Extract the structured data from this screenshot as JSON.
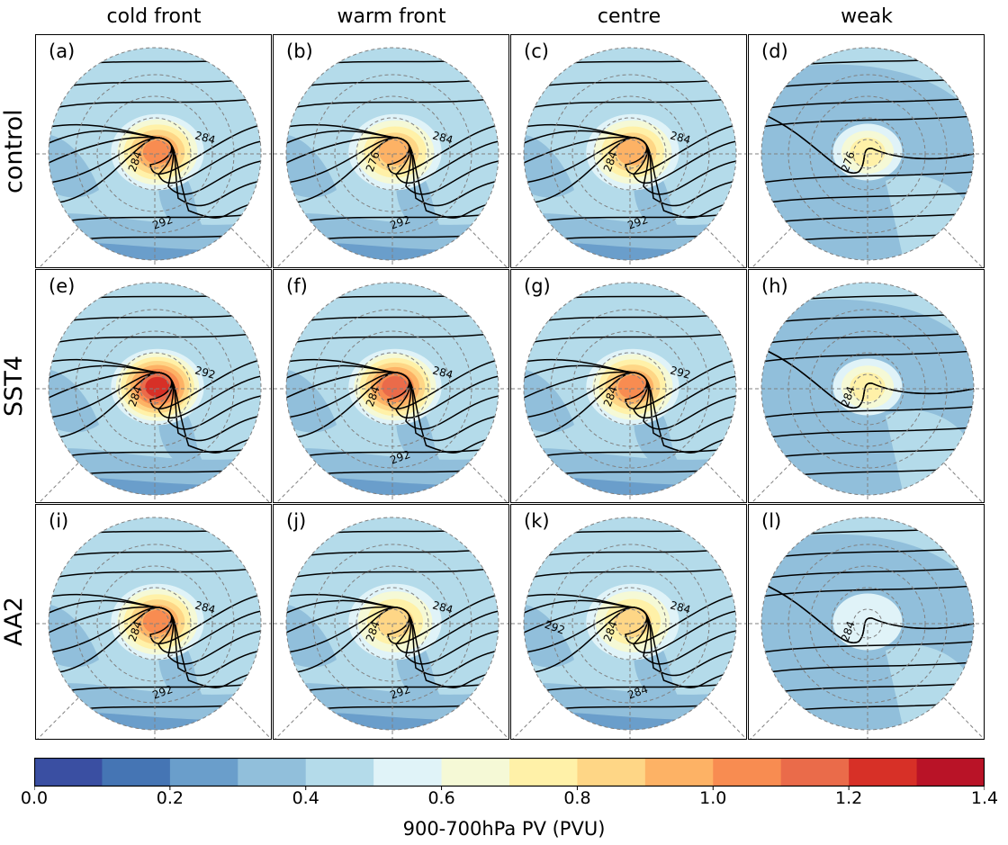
{
  "columns": [
    "cold front",
    "warm front",
    "centre",
    "weak"
  ],
  "rows": [
    "control",
    "SST4",
    "AA2"
  ],
  "panels": [
    {
      "label": "(a)",
      "style": "front",
      "pv_core": 1.05,
      "contour_labels": [
        "284",
        "284",
        "292"
      ]
    },
    {
      "label": "(b)",
      "style": "front",
      "pv_core": 0.9,
      "contour_labels": [
        "276",
        "284",
        "292"
      ]
    },
    {
      "label": "(c)",
      "style": "centre",
      "pv_core": 0.95,
      "contour_labels": [
        "284",
        "284",
        "292"
      ]
    },
    {
      "label": "(d)",
      "style": "weak",
      "pv_core": 0.7,
      "contour_labels": [
        "276"
      ]
    },
    {
      "label": "(e)",
      "style": "front",
      "pv_core": 1.25,
      "contour_labels": [
        "284",
        "292"
      ]
    },
    {
      "label": "(f)",
      "style": "front",
      "pv_core": 1.15,
      "contour_labels": [
        "284",
        "284",
        "292"
      ]
    },
    {
      "label": "(g)",
      "style": "centre",
      "pv_core": 1.05,
      "contour_labels": [
        "284",
        "292"
      ]
    },
    {
      "label": "(h)",
      "style": "weak",
      "pv_core": 0.72,
      "contour_labels": [
        "284"
      ]
    },
    {
      "label": "(i)",
      "style": "front",
      "pv_core": 1.0,
      "contour_labels": [
        "284",
        "284",
        "292"
      ]
    },
    {
      "label": "(j)",
      "style": "front",
      "pv_core": 0.85,
      "contour_labels": [
        "284",
        "284",
        "292"
      ]
    },
    {
      "label": "(k)",
      "style": "centre",
      "pv_core": 0.85,
      "contour_labels": [
        "284",
        "284",
        "284",
        "292"
      ]
    },
    {
      "label": "(l)",
      "style": "weak",
      "pv_core": 0.55,
      "contour_labels": [
        "284"
      ]
    }
  ],
  "colorbar": {
    "label": "900-700hPa PV (PVU)",
    "ticks": [
      "0.0",
      "0.2",
      "0.4",
      "0.6",
      "0.8",
      "1.0",
      "1.2",
      "1.4"
    ],
    "colors": [
      "#3a4fa2",
      "#4575b4",
      "#6a9ecb",
      "#91bfdb",
      "#b4dbea",
      "#e0f3f8",
      "#f5f9d6",
      "#fff1a8",
      "#fed686",
      "#fdb265",
      "#f88c51",
      "#ea6b4a",
      "#d73027",
      "#b91327"
    ]
  },
  "chart_data": {
    "type": "heatmap",
    "variable": "900-700hPa PV (PVU)",
    "colorbar_range": [
      0,
      1.4
    ],
    "colorbar_step": 0.1,
    "rows": [
      "control",
      "SST4",
      "AA2"
    ],
    "columns": [
      "cold front",
      "warm front",
      "centre",
      "weak"
    ]
  }
}
